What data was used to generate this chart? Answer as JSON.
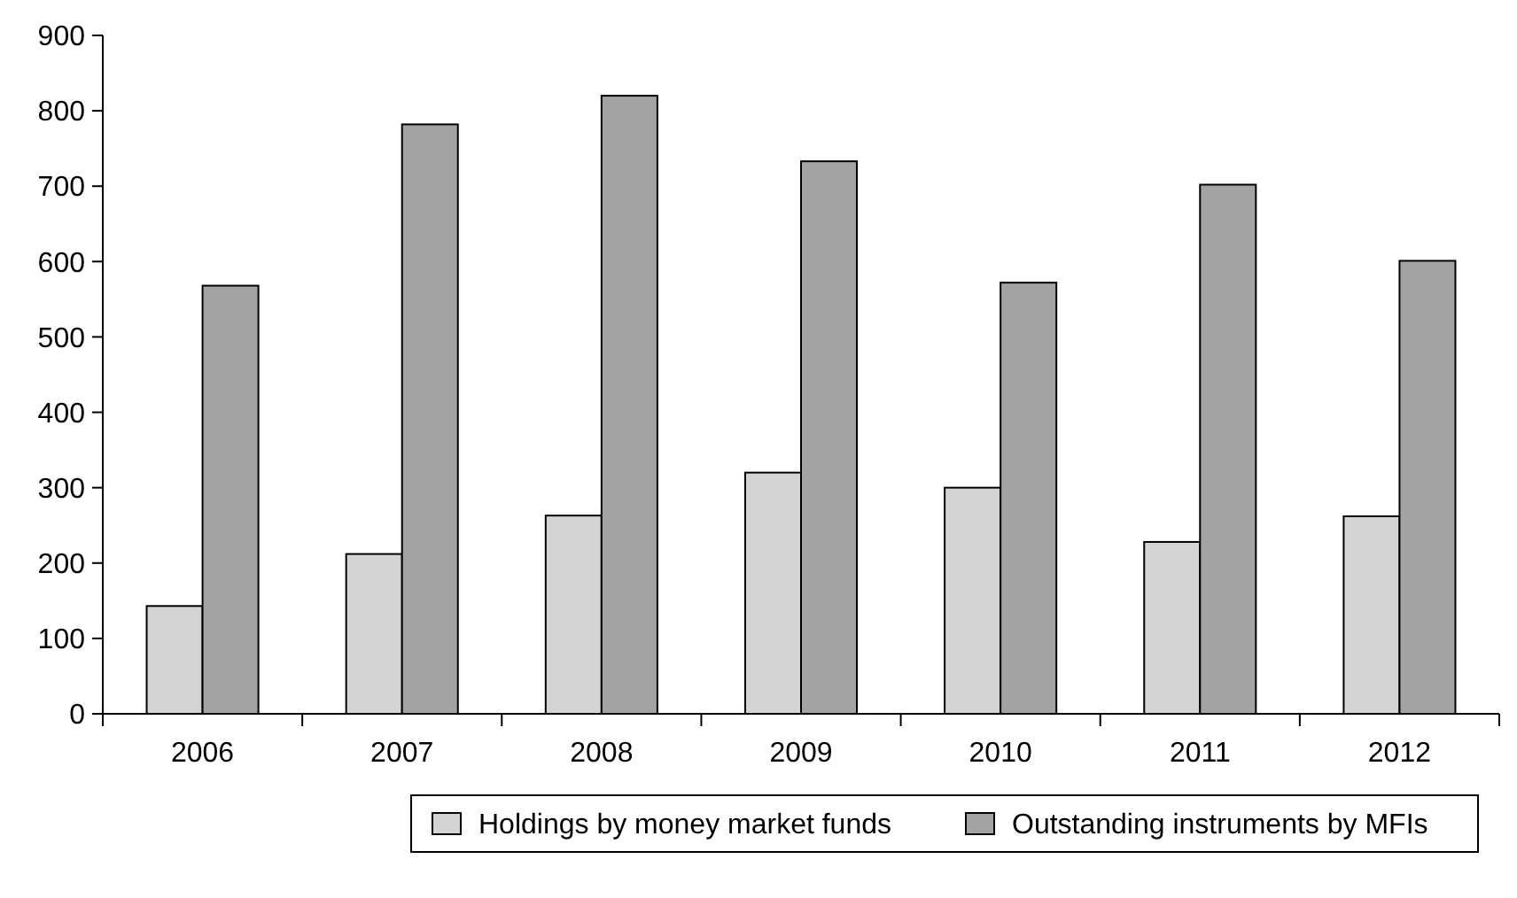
{
  "chart_data": {
    "type": "bar",
    "categories": [
      "2006",
      "2007",
      "2008",
      "2009",
      "2010",
      "2011",
      "2012"
    ],
    "series": [
      {
        "name": "Holdings by money market funds",
        "color": "#d4d4d4",
        "values": [
          143,
          212,
          263,
          320,
          300,
          228,
          262
        ]
      },
      {
        "name": "Outstanding instruments by MFIs",
        "color": "#a3a3a3",
        "values": [
          568,
          782,
          820,
          733,
          572,
          702,
          601
        ]
      }
    ],
    "ylim": [
      0,
      900
    ],
    "yticks": [
      0,
      100,
      200,
      300,
      400,
      500,
      600,
      700,
      800,
      900
    ],
    "grid": false,
    "legend": "bottom"
  }
}
